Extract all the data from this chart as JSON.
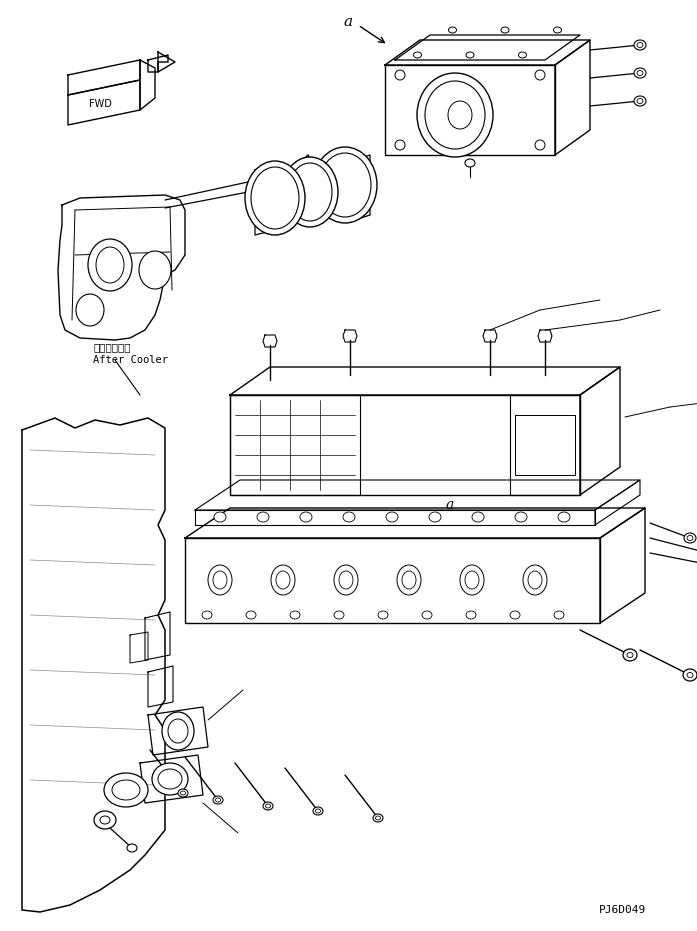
{
  "background_color": "#ffffff",
  "line_color": "#000000",
  "fig_width": 6.97,
  "fig_height": 9.31,
  "dpi": 100,
  "part_code": "PJ6D049",
  "fwd_label": "FWD",
  "after_cooler_ja": "アフタクーラ",
  "after_cooler_en": "After Cooler",
  "label_a": "a"
}
